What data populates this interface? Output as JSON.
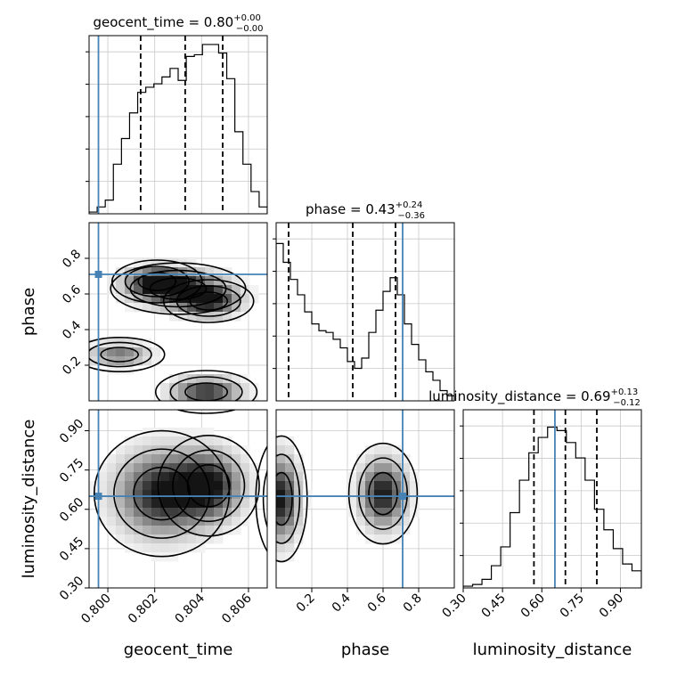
{
  "chart_data": {
    "type": "corner",
    "parameters": [
      {
        "name": "geocent_time",
        "range": [
          0.7992,
          0.8068
        ],
        "ticks": [
          "0.800",
          "0.802",
          "0.804",
          "0.806"
        ],
        "title": "geocent_time = 0.80",
        "title_plus": "+0.00",
        "title_minus": "−0.00",
        "quantiles": [
          0.8014,
          0.8033,
          0.8049
        ],
        "truth": 0.7996,
        "hist": [
          0.01,
          0.04,
          0.08,
          0.29,
          0.44,
          0.59,
          0.71,
          0.74,
          0.76,
          0.8,
          0.85,
          0.78,
          0.92,
          0.93,
          0.99,
          0.99,
          0.94,
          0.79,
          0.48,
          0.29,
          0.13,
          0.04
        ]
      },
      {
        "name": "phase",
        "range": [
          0.0,
          1.0
        ],
        "ticks": [
          "0.2",
          "0.4",
          "0.6",
          "0.8"
        ],
        "title": "phase = 0.43",
        "title_plus": "+0.24",
        "title_minus": "−0.36",
        "quantiles": [
          0.07,
          0.43,
          0.67
        ],
        "truth": 0.71,
        "hist": [
          0.92,
          0.81,
          0.71,
          0.62,
          0.52,
          0.45,
          0.41,
          0.4,
          0.36,
          0.31,
          0.23,
          0.19,
          0.25,
          0.4,
          0.53,
          0.64,
          0.72,
          0.62,
          0.45,
          0.33,
          0.24,
          0.17,
          0.12,
          0.06,
          0.03
        ]
      },
      {
        "name": "luminosity_distance",
        "range": [
          0.3,
          0.98
        ],
        "ticks": [
          "0.30",
          "0.45",
          "0.60",
          "0.75",
          "0.90"
        ],
        "title": "luminosity_distance = 0.69",
        "title_plus": "+0.13",
        "title_minus": "−0.12",
        "quantiles": [
          0.57,
          0.69,
          0.81
        ],
        "truth": 0.65,
        "hist": [
          0.01,
          0.02,
          0.05,
          0.13,
          0.24,
          0.44,
          0.63,
          0.79,
          0.88,
          0.94,
          0.92,
          0.85,
          0.76,
          0.63,
          0.46,
          0.34,
          0.23,
          0.14,
          0.1
        ]
      }
    ],
    "truth_point_color": "#4682b4",
    "truth_line_color": "#4682b4",
    "hist_color": "#000000"
  }
}
